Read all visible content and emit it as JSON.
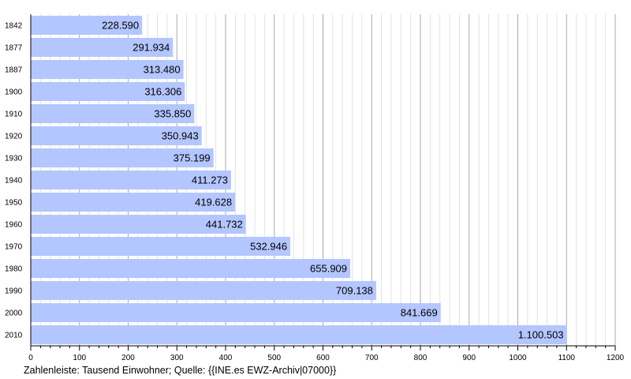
{
  "chart_data": {
    "type": "bar",
    "orientation": "horizontal",
    "categories": [
      "1842",
      "1877",
      "1887",
      "1900",
      "1910",
      "1920",
      "1930",
      "1940",
      "1950",
      "1960",
      "1970",
      "1980",
      "1990",
      "2000",
      "2010"
    ],
    "values": [
      228.59,
      291.934,
      313.48,
      316.306,
      335.85,
      350.943,
      375.199,
      411.273,
      419.628,
      441.732,
      532.946,
      655.909,
      709.138,
      841.669,
      1100.503
    ],
    "value_labels": [
      "228.590",
      "291.934",
      "313.480",
      "316.306",
      "335.850",
      "350.943",
      "375.199",
      "411.273",
      "419.628",
      "441.732",
      "532.946",
      "655.909",
      "709.138",
      "841.669",
      "1.100.503"
    ],
    "xlim": [
      0,
      1200
    ],
    "xticks": [
      0,
      100,
      200,
      300,
      400,
      500,
      600,
      700,
      800,
      900,
      1000,
      1100,
      1200
    ],
    "minor_step": 20,
    "grid": true,
    "bar_color": "#b3c6ff",
    "title": "",
    "xlabel": "",
    "ylabel": ""
  },
  "caption": "Zahlenleiste: Tausend Einwohner; Quelle: {{INE.es EWZ-Archiv|07000}}"
}
